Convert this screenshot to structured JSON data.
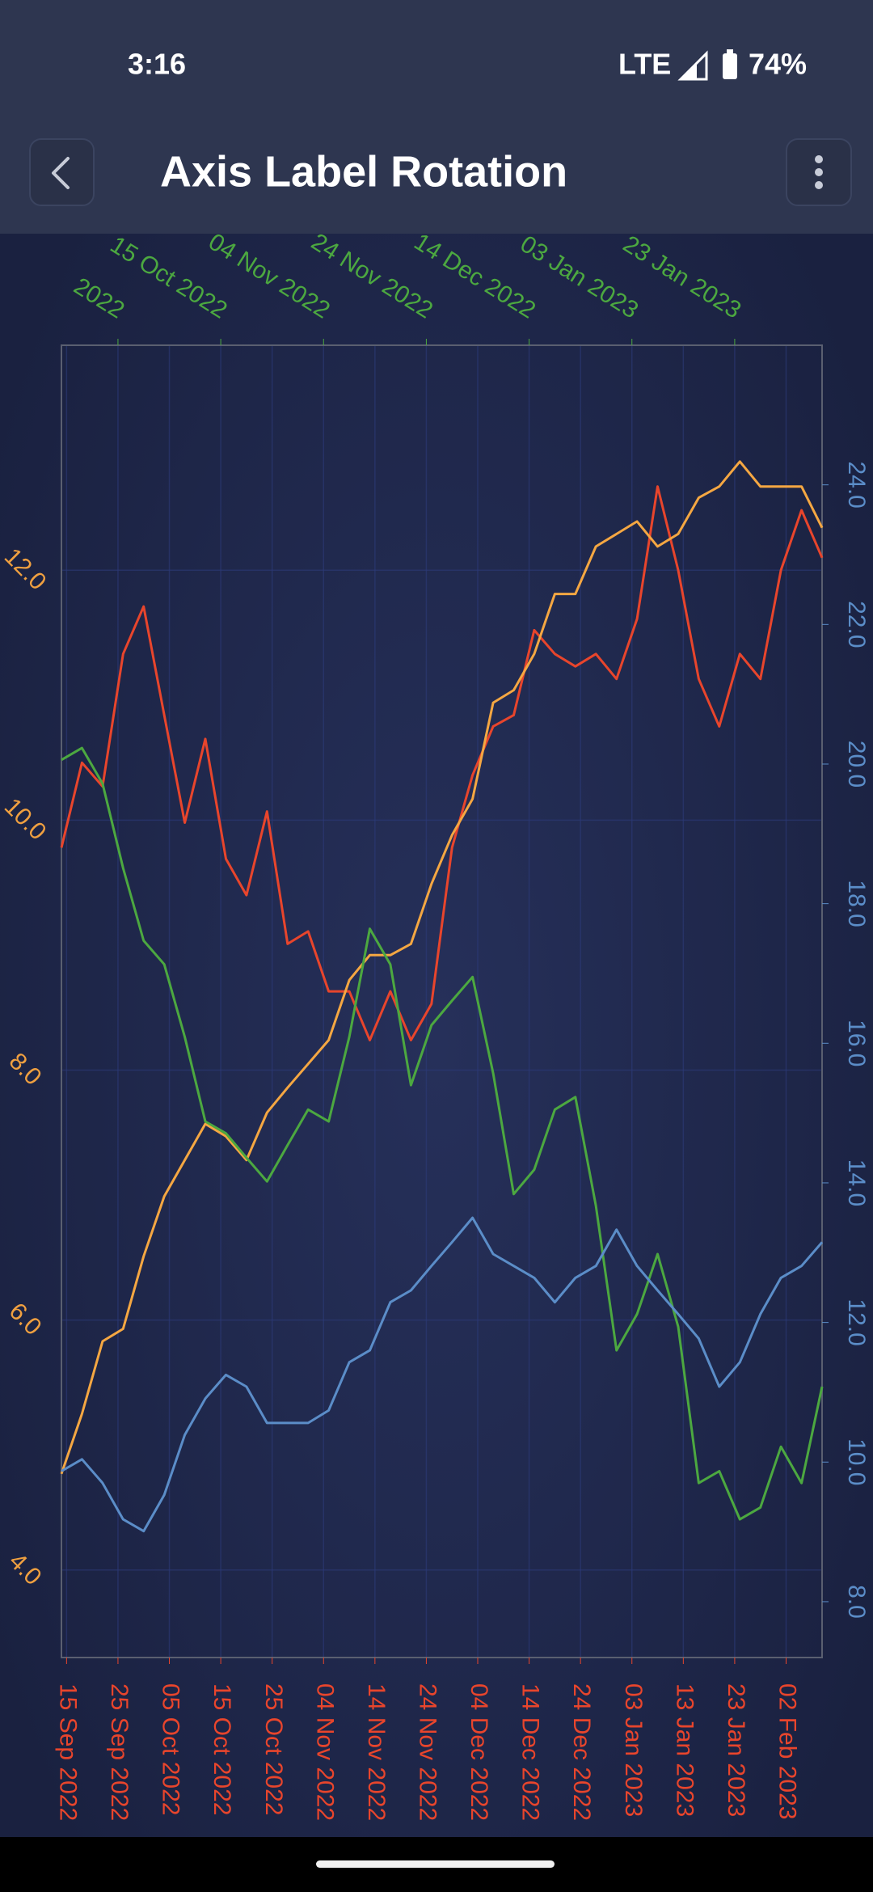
{
  "status_bar": {
    "time": "3:16",
    "network": "LTE",
    "battery": "74%"
  },
  "app_bar": {
    "title": "Axis Label Rotation"
  },
  "chart_data": {
    "type": "line",
    "x": [
      "2022-09-14",
      "2022-09-18",
      "2022-09-22",
      "2022-09-26",
      "2022-09-30",
      "2022-10-04",
      "2022-10-08",
      "2022-10-12",
      "2022-10-16",
      "2022-10-20",
      "2022-10-24",
      "2022-10-28",
      "2022-11-01",
      "2022-11-05",
      "2022-11-09",
      "2022-11-13",
      "2022-11-17",
      "2022-11-21",
      "2022-11-25",
      "2022-11-29",
      "2022-12-03",
      "2022-12-07",
      "2022-12-11",
      "2022-12-15",
      "2022-12-19",
      "2022-12-23",
      "2022-12-27",
      "2022-12-31",
      "2023-01-04",
      "2023-01-08",
      "2023-01-12",
      "2023-01-16",
      "2023-01-20",
      "2023-01-24",
      "2023-01-28",
      "2023-02-01",
      "2023-02-05",
      "2023-02-09"
    ],
    "xlim": [
      "2022-09-14",
      "2023-02-09"
    ],
    "xticks": [
      {
        "value": "2022-09-15",
        "label": "15 Sep 2022"
      },
      {
        "value": "2022-09-25",
        "label": "25 Sep 2022"
      },
      {
        "value": "2022-10-05",
        "label": "05 Oct 2022"
      },
      {
        "value": "2022-10-15",
        "label": "15 Oct 2022"
      },
      {
        "value": "2022-10-25",
        "label": "25 Oct 2022"
      },
      {
        "value": "2022-11-04",
        "label": "04 Nov 2022"
      },
      {
        "value": "2022-11-14",
        "label": "14 Nov 2022"
      },
      {
        "value": "2022-11-24",
        "label": "24 Nov 2022"
      },
      {
        "value": "2022-12-04",
        "label": "04 Dec 2022"
      },
      {
        "value": "2022-12-14",
        "label": "14 Dec 2022"
      },
      {
        "value": "2022-12-24",
        "label": "24 Dec 2022"
      },
      {
        "value": "2023-01-03",
        "label": "03 Jan 2023"
      },
      {
        "value": "2023-01-13",
        "label": "13 Jan 2023"
      },
      {
        "value": "2023-01-23",
        "label": "23 Jan 2023"
      },
      {
        "value": "2023-02-02",
        "label": "02 Feb 2023"
      }
    ],
    "x2ticks": [
      {
        "value": "2022-09-25",
        "label": "2022"
      },
      {
        "value": "2022-10-15",
        "label": "15 Oct 2022"
      },
      {
        "value": "2022-11-04",
        "label": "04 Nov 2022"
      },
      {
        "value": "2022-11-24",
        "label": "24 Nov 2022"
      },
      {
        "value": "2022-12-14",
        "label": "14 Dec 2022"
      },
      {
        "value": "2023-01-03",
        "label": "03 Jan 2023"
      },
      {
        "value": "2023-01-23",
        "label": "23 Jan 2023"
      }
    ],
    "ylim": [
      3.3,
      13.8
    ],
    "yticks": [
      {
        "value": 4,
        "label": "4.0"
      },
      {
        "value": 6,
        "label": "6.0"
      },
      {
        "value": 8,
        "label": "8.0"
      },
      {
        "value": 10,
        "label": "10.0"
      },
      {
        "value": 12,
        "label": "12.0"
      }
    ],
    "y2lim": [
      7.2,
      26.0
    ],
    "y2ticks": [
      {
        "value": 8,
        "label": "8.0"
      },
      {
        "value": 10,
        "label": "10.0"
      },
      {
        "value": 12,
        "label": "12.0"
      },
      {
        "value": 14,
        "label": "14.0"
      },
      {
        "value": 16,
        "label": "16.0"
      },
      {
        "value": 18,
        "label": "18.0"
      },
      {
        "value": 20,
        "label": "20.0"
      },
      {
        "value": 22,
        "label": "22.0"
      },
      {
        "value": 24,
        "label": "24.0"
      }
    ],
    "x_label_color": "#e8452c",
    "x2_label_color": "#4ca840",
    "y_label_color": "#f0a040",
    "y2_label_color": "#5b8dc8",
    "grid": true,
    "series": [
      {
        "color": "#e8452c",
        "values": [
          9.78,
          10.46,
          10.27,
          11.33,
          11.71,
          10.84,
          9.98,
          10.65,
          9.69,
          9.4,
          10.07,
          9.01,
          9.11,
          8.63,
          8.63,
          8.24,
          8.63,
          8.24,
          8.53,
          9.78,
          10.36,
          10.75,
          10.84,
          11.52,
          11.33,
          11.23,
          11.33,
          11.13,
          11.61,
          12.67,
          12.0,
          11.13,
          10.75,
          11.33,
          11.13,
          12.0,
          12.48,
          12.1
        ]
      },
      {
        "color": "#f5a742",
        "values": [
          4.77,
          5.25,
          5.83,
          5.93,
          6.51,
          6.99,
          7.28,
          7.57,
          7.47,
          7.28,
          7.66,
          7.86,
          8.05,
          8.24,
          8.72,
          8.92,
          8.92,
          9.01,
          9.49,
          9.88,
          10.17,
          10.94,
          11.04,
          11.33,
          11.81,
          11.81,
          12.19,
          12.29,
          12.39,
          12.19,
          12.29,
          12.58,
          12.67,
          12.87,
          12.67,
          12.67,
          12.67,
          12.34
        ]
      },
      {
        "color": "#4ca840",
        "axis": "y2",
        "values": [
          20.06,
          20.23,
          19.72,
          18.51,
          17.47,
          17.13,
          16.09,
          14.88,
          14.71,
          14.36,
          14.02,
          14.54,
          15.05,
          14.88,
          16.09,
          17.64,
          17.13,
          15.4,
          16.26,
          16.61,
          16.95,
          15.57,
          13.84,
          14.19,
          15.05,
          15.23,
          13.67,
          11.6,
          12.12,
          12.98,
          11.94,
          9.7,
          9.87,
          9.18,
          9.35,
          10.22,
          9.7,
          11.08
        ]
      },
      {
        "color": "#5b8dc8",
        "axis": "y2",
        "values": [
          9.87,
          10.04,
          9.7,
          9.18,
          9.01,
          9.53,
          10.39,
          10.91,
          11.25,
          11.08,
          10.56,
          10.56,
          10.56,
          10.74,
          11.43,
          11.6,
          12.29,
          12.46,
          12.81,
          13.15,
          13.5,
          12.98,
          12.81,
          12.64,
          12.29,
          12.64,
          12.81,
          13.33,
          12.81,
          12.46,
          12.12,
          11.77,
          11.08,
          11.43,
          12.12,
          12.64,
          12.81,
          13.15
        ]
      }
    ]
  }
}
